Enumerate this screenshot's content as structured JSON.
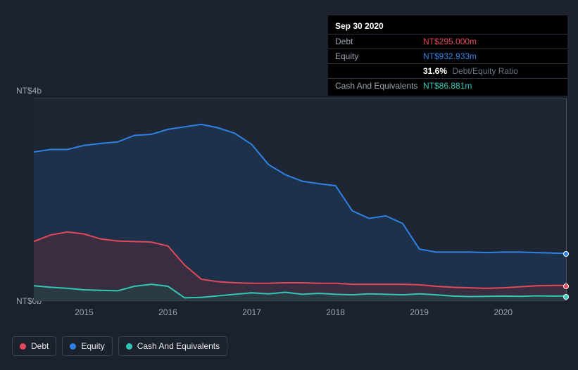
{
  "chart": {
    "type": "area",
    "background_color": "#1b222d",
    "chart_background": "#1e2633",
    "grid_color": "#3a4250",
    "label_color": "#9aa4b2",
    "text_color": "#e6e9ee",
    "label_fontsize": 12,
    "y_axis": {
      "top_label": "NT$4b",
      "bottom_label": "NT$0b",
      "min": 0,
      "max": 4000
    },
    "x_axis": {
      "labels": [
        "2015",
        "2016",
        "2017",
        "2018",
        "2019",
        "2020"
      ],
      "min": 2014.4,
      "max": 2020.75,
      "tick_positions": [
        2015,
        2016,
        2017,
        2018,
        2019,
        2020
      ]
    },
    "series": [
      {
        "name": "Equity",
        "color": "#2e82e5",
        "fill": "#1e3a5f",
        "fill_opacity": 0.55,
        "line_width": 2,
        "points": [
          [
            2014.4,
            2950
          ],
          [
            2014.6,
            3000
          ],
          [
            2014.8,
            3000
          ],
          [
            2015.0,
            3080
          ],
          [
            2015.2,
            3120
          ],
          [
            2015.4,
            3150
          ],
          [
            2015.6,
            3280
          ],
          [
            2015.8,
            3300
          ],
          [
            2016.0,
            3400
          ],
          [
            2016.2,
            3450
          ],
          [
            2016.4,
            3500
          ],
          [
            2016.6,
            3430
          ],
          [
            2016.8,
            3320
          ],
          [
            2017.0,
            3100
          ],
          [
            2017.2,
            2700
          ],
          [
            2017.4,
            2500
          ],
          [
            2017.6,
            2370
          ],
          [
            2017.8,
            2320
          ],
          [
            2018.0,
            2280
          ],
          [
            2018.2,
            1780
          ],
          [
            2018.4,
            1630
          ],
          [
            2018.6,
            1680
          ],
          [
            2018.8,
            1530
          ],
          [
            2019.0,
            1020
          ],
          [
            2019.2,
            960
          ],
          [
            2019.4,
            960
          ],
          [
            2019.6,
            960
          ],
          [
            2019.8,
            950
          ],
          [
            2020.0,
            960
          ],
          [
            2020.2,
            960
          ],
          [
            2020.4,
            950
          ],
          [
            2020.6,
            940
          ],
          [
            2020.75,
            932.933
          ]
        ]
      },
      {
        "name": "Debt",
        "color": "#e64759",
        "fill": "#5a2a35",
        "fill_opacity": 0.45,
        "line_width": 2,
        "points": [
          [
            2014.4,
            1170
          ],
          [
            2014.6,
            1300
          ],
          [
            2014.8,
            1360
          ],
          [
            2015.0,
            1320
          ],
          [
            2015.2,
            1220
          ],
          [
            2015.4,
            1180
          ],
          [
            2015.6,
            1170
          ],
          [
            2015.8,
            1160
          ],
          [
            2016.0,
            1080
          ],
          [
            2016.2,
            700
          ],
          [
            2016.4,
            420
          ],
          [
            2016.6,
            370
          ],
          [
            2016.8,
            350
          ],
          [
            2017.0,
            340
          ],
          [
            2017.2,
            340
          ],
          [
            2017.4,
            350
          ],
          [
            2017.6,
            350
          ],
          [
            2017.8,
            340
          ],
          [
            2018.0,
            340
          ],
          [
            2018.2,
            320
          ],
          [
            2018.4,
            320
          ],
          [
            2018.6,
            320
          ],
          [
            2018.8,
            320
          ],
          [
            2019.0,
            310
          ],
          [
            2019.2,
            280
          ],
          [
            2019.4,
            260
          ],
          [
            2019.6,
            250
          ],
          [
            2019.8,
            240
          ],
          [
            2020.0,
            250
          ],
          [
            2020.2,
            270
          ],
          [
            2020.4,
            290
          ],
          [
            2020.6,
            295
          ],
          [
            2020.75,
            295
          ]
        ]
      },
      {
        "name": "Cash And Equivalents",
        "color": "#32c7b7",
        "fill": "#1d4945",
        "fill_opacity": 0.5,
        "line_width": 2,
        "points": [
          [
            2014.4,
            290
          ],
          [
            2014.6,
            260
          ],
          [
            2014.8,
            240
          ],
          [
            2015.0,
            210
          ],
          [
            2015.2,
            200
          ],
          [
            2015.4,
            190
          ],
          [
            2015.6,
            280
          ],
          [
            2015.8,
            320
          ],
          [
            2016.0,
            280
          ],
          [
            2016.2,
            50
          ],
          [
            2016.4,
            60
          ],
          [
            2016.6,
            90
          ],
          [
            2016.8,
            120
          ],
          [
            2017.0,
            150
          ],
          [
            2017.2,
            130
          ],
          [
            2017.4,
            160
          ],
          [
            2017.6,
            120
          ],
          [
            2017.8,
            140
          ],
          [
            2018.0,
            120
          ],
          [
            2018.2,
            110
          ],
          [
            2018.4,
            130
          ],
          [
            2018.6,
            120
          ],
          [
            2018.8,
            110
          ],
          [
            2019.0,
            130
          ],
          [
            2019.2,
            110
          ],
          [
            2019.4,
            85
          ],
          [
            2019.6,
            75
          ],
          [
            2019.8,
            80
          ],
          [
            2020.0,
            85
          ],
          [
            2020.2,
            80
          ],
          [
            2020.4,
            90
          ],
          [
            2020.6,
            85
          ],
          [
            2020.75,
            86.881
          ]
        ]
      }
    ],
    "tooltip": {
      "date": "Sep 30 2020",
      "rows": [
        {
          "label": "Debt",
          "value": "NT$295.000m",
          "color": "#e64759"
        },
        {
          "label": "Equity",
          "value": "NT$932.933m",
          "color": "#2e82e5"
        },
        {
          "label": "",
          "value": "31.6%",
          "sublabel": "Debt/Equity Ratio",
          "color": "#ffffff"
        },
        {
          "label": "Cash And Equivalents",
          "value": "NT$86.881m",
          "color": "#32c7b7"
        }
      ]
    },
    "legend": [
      {
        "label": "Debt",
        "color": "#e64759"
      },
      {
        "label": "Equity",
        "color": "#2e82e5"
      },
      {
        "label": "Cash And Equivalents",
        "color": "#32c7b7"
      }
    ],
    "cursor_x": 2020.75
  }
}
